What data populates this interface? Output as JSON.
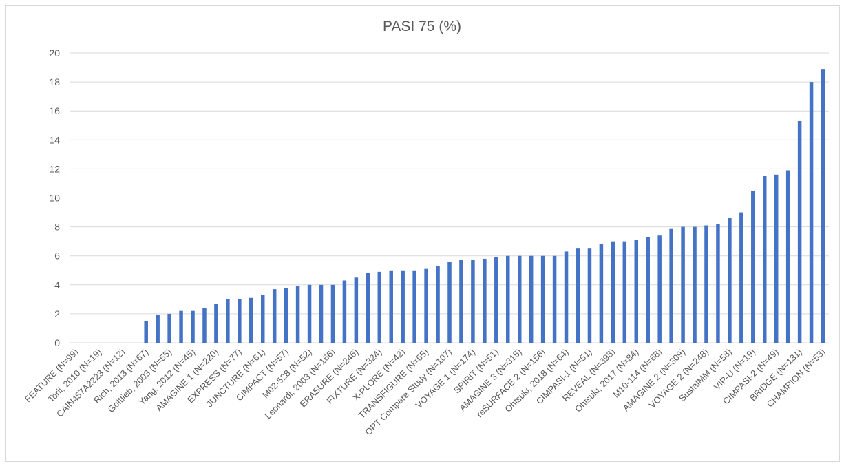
{
  "chart_data": {
    "type": "bar",
    "title": "PASI 75 (%)",
    "xlabel": "",
    "ylabel": "",
    "ylim": [
      0,
      20
    ],
    "yticks": [
      0,
      2,
      4,
      6,
      8,
      10,
      12,
      14,
      16,
      18,
      20
    ],
    "grid": true,
    "bar_color": "#4472c4",
    "categories": [
      "FEATURE (N=99)",
      "",
      "Torii, 2010 (N=19)",
      "",
      "CAIN457A2223 (N=12)",
      "",
      "Rich, 2013 (N=67)",
      "",
      "Gottlieb, 2003 (N=55)",
      "",
      "Yang, 2012 (N=45)",
      "",
      "AMAGINE 1 (N=220)",
      "",
      "EXPRESS (N=77)",
      "",
      "JUNCTURE (N=61)",
      "",
      "CIMPACT (N=57)",
      "",
      "M02-528 (N=52)",
      "",
      "Leonardi, 2003 (N=166)",
      "",
      "ERASURE (N=246)",
      "",
      "FIXTURE (N=324)",
      "",
      "X-PLORE (N=42)",
      "",
      "TRANSFIGURE (N=65)",
      "",
      "OPT Compare Study (N=107)",
      "",
      "VOYAGE 1 (N=174)",
      "",
      "SPIRIT (N=51)",
      "",
      "AMAGINE 3 (N=315)",
      "",
      "reSURFACE 2 (N=156)",
      "",
      "Ohtsuki, 2018 (N=64)",
      "",
      "CIMPASI-1 (N=51)",
      "",
      "REVEAL (N=398)",
      "",
      "Ohtsuki, 2017 (N=84)",
      "",
      "M10-114 (N=68)",
      "",
      "AMAGINE 2 (N=309)",
      "",
      "VOYAGE 2 (N=248)",
      "",
      "SustaIMM (N=58)",
      "",
      "VIP-U (N=19)",
      "",
      "CIMPASI-2 (N=49)",
      "",
      "BRIDGE (N=131)",
      "",
      "CHAMPION (N=53)"
    ],
    "values": [
      0,
      0,
      0,
      0,
      0,
      0,
      1.5,
      1.9,
      2.0,
      2.2,
      2.2,
      2.4,
      2.7,
      3.0,
      3.0,
      3.1,
      3.3,
      3.7,
      3.8,
      3.9,
      4.0,
      4.0,
      4.0,
      4.3,
      4.5,
      4.8,
      4.9,
      5.0,
      5.0,
      5.0,
      5.1,
      5.3,
      5.6,
      5.7,
      5.7,
      5.8,
      5.9,
      6.0,
      6.0,
      6.0,
      6.0,
      6.0,
      6.3,
      6.5,
      6.5,
      6.8,
      7.0,
      7.0,
      7.1,
      7.3,
      7.4,
      7.9,
      8.0,
      8.0,
      8.1,
      8.2,
      8.6,
      9.0,
      10.5,
      11.5,
      11.6,
      11.9,
      15.3,
      18.0,
      18.9
    ]
  }
}
